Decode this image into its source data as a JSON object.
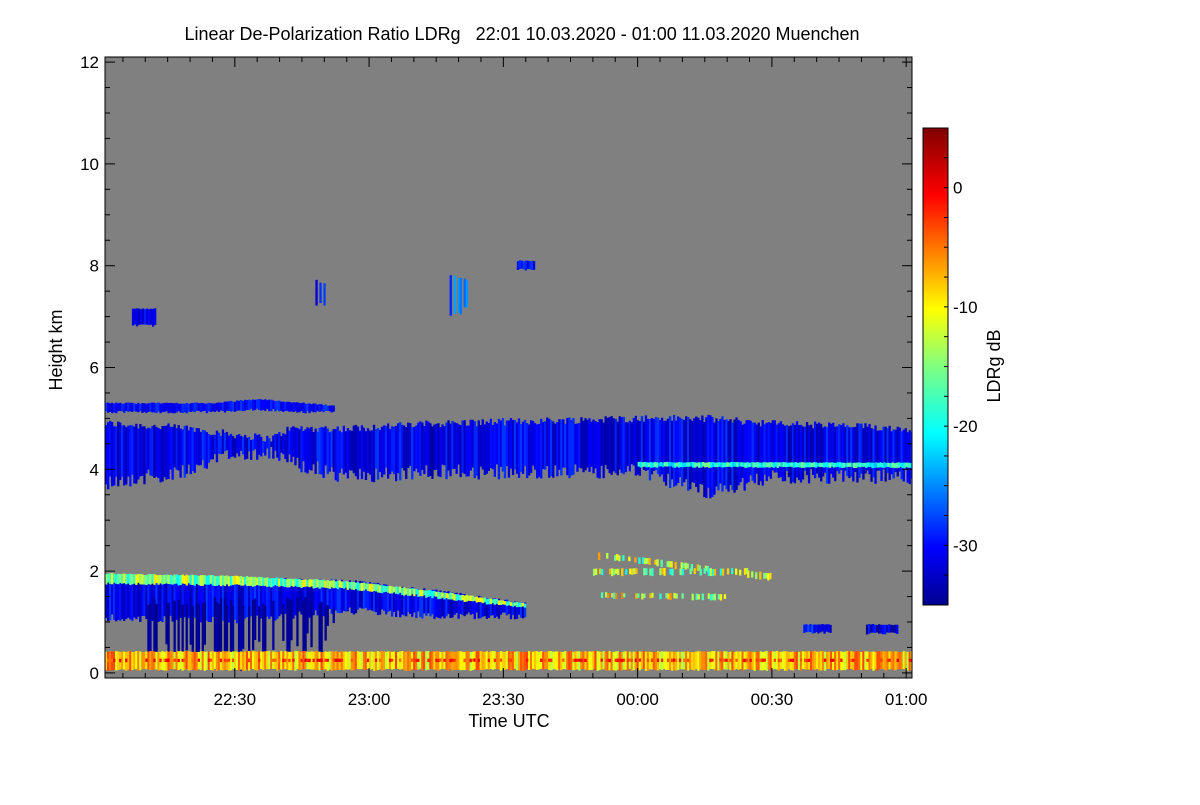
{
  "chart_data": {
    "type": "heatmap",
    "title": "Linear De-Polarization Ratio LDRg   22:01 10.03.2020 - 01:00 11.03.2020 Muenchen",
    "xlabel": "Time UTC",
    "ylabel": "Height km",
    "colorbar_label": "LDRg dB",
    "time_origin": "22:00",
    "xlim_minutes": [
      1,
      181.3
    ],
    "ylim": [
      -0.1,
      12.1
    ],
    "x_ticks": [
      {
        "minutes": 30,
        "label": "22:30"
      },
      {
        "minutes": 60,
        "label": "23:00"
      },
      {
        "minutes": 90,
        "label": "23:30"
      },
      {
        "minutes": 120,
        "label": "00:00"
      },
      {
        "minutes": 150,
        "label": "00:30"
      },
      {
        "minutes": 180,
        "label": "01:00"
      }
    ],
    "y_ticks": [
      {
        "value": 0,
        "label": "0"
      },
      {
        "value": 2,
        "label": "2"
      },
      {
        "value": 4,
        "label": "4"
      },
      {
        "value": 6,
        "label": "6"
      },
      {
        "value": 8,
        "label": "8"
      },
      {
        "value": 10,
        "label": "10"
      },
      {
        "value": 12,
        "label": "12"
      }
    ],
    "colorbar_range": [
      -35,
      5
    ],
    "colorbar_ticks": [
      {
        "value": 0,
        "label": "0"
      },
      {
        "value": -10,
        "label": "-10"
      },
      {
        "value": -20,
        "label": "-20"
      },
      {
        "value": -30,
        "label": "-30"
      }
    ],
    "background_color": "#808080",
    "features": [
      {
        "name": "cirrus-layer",
        "ldr": -31,
        "spread": 3,
        "jitter": 0.3,
        "profile": [
          [
            1,
            3.9,
            4.9
          ],
          [
            20,
            4.1,
            4.8
          ],
          [
            28,
            4.45,
            4.7
          ],
          [
            38,
            4.5,
            4.6
          ],
          [
            42,
            4.3,
            4.8
          ],
          [
            55,
            4.0,
            4.8
          ],
          [
            75,
            4.1,
            4.9
          ],
          [
            120,
            4.1,
            5.0
          ],
          [
            135,
            3.7,
            5.0
          ],
          [
            150,
            4.0,
            4.9
          ],
          [
            181,
            4.0,
            4.8
          ]
        ]
      },
      {
        "name": "cirrus-base-rim",
        "ldr": -19,
        "spread": 4,
        "jitter": 0.03,
        "profile": [
          [
            120,
            4.06,
            4.14
          ],
          [
            181,
            4.05,
            4.13
          ]
        ]
      },
      {
        "name": "upper-thin-layer",
        "ldr": -30,
        "spread": 2,
        "jitter": 0.05,
        "profile": [
          [
            1,
            5.15,
            5.3
          ],
          [
            25,
            5.15,
            5.3
          ],
          [
            35,
            5.2,
            5.38
          ],
          [
            45,
            5.15,
            5.3
          ],
          [
            52,
            5.15,
            5.25
          ]
        ]
      },
      {
        "name": "low-cloud",
        "ldr": -31,
        "spread": 3,
        "jitter": 0.15,
        "profile": [
          [
            1,
            1.15,
            1.9
          ],
          [
            30,
            1.1,
            1.85
          ],
          [
            55,
            1.3,
            1.8
          ],
          [
            75,
            1.2,
            1.6
          ],
          [
            95,
            1.2,
            1.35
          ]
        ]
      },
      {
        "name": "low-cloud-top-rim",
        "ldr": -15,
        "spread": 6,
        "jitter": 0.05,
        "profile": [
          [
            1,
            1.78,
            1.95
          ],
          [
            30,
            1.75,
            1.9
          ],
          [
            55,
            1.68,
            1.8
          ],
          [
            75,
            1.5,
            1.6
          ],
          [
            95,
            1.3,
            1.36
          ]
        ]
      },
      {
        "name": "fallstreaks",
        "ldr": -35,
        "spread": 1,
        "jitter": 0.4,
        "sparse": 0.5,
        "profile": [
          [
            10,
            0.8,
            1.4
          ],
          [
            30,
            0.6,
            1.4
          ],
          [
            50,
            0.9,
            1.4
          ],
          [
            52,
            1.0,
            1.3
          ]
        ]
      },
      {
        "name": "boundary-layer",
        "ldr": -8,
        "spread": 5,
        "jitter": 0.04,
        "profile": [
          [
            1,
            0.08,
            0.42
          ],
          [
            181,
            0.08,
            0.42
          ]
        ]
      },
      {
        "name": "boundary-layer-red-line",
        "ldr": -2,
        "spread": 3,
        "jitter": 0.01,
        "sparse": 0.6,
        "profile": [
          [
            1,
            0.22,
            0.28
          ],
          [
            181,
            0.22,
            0.28
          ]
        ]
      },
      {
        "name": "mid-level-scatter",
        "ldr": -13,
        "spread": 7,
        "jitter": 0.05,
        "sparse": 0.55,
        "profile": [
          [
            108,
            2.3,
            2.4
          ],
          [
            150,
            1.85,
            1.95
          ]
        ]
      },
      {
        "name": "mid-level-scatter-2",
        "ldr": -14,
        "spread": 7,
        "jitter": 0.05,
        "sparse": 0.5,
        "profile": [
          [
            110,
            1.95,
            2.05
          ],
          [
            145,
            1.95,
            2.05
          ]
        ]
      },
      {
        "name": "mid-level-scatter-3",
        "ldr": -12,
        "spread": 7,
        "jitter": 0.04,
        "sparse": 0.5,
        "profile": [
          [
            110,
            1.5,
            1.58
          ],
          [
            140,
            1.45,
            1.55
          ]
        ]
      },
      {
        "name": "blob-1",
        "ldr": -31,
        "spread": 2,
        "jitter": 0.05,
        "profile": [
          [
            7,
            6.85,
            7.15
          ],
          [
            12,
            6.85,
            7.15
          ]
        ]
      },
      {
        "name": "blob-2",
        "ldr": -30,
        "spread": 3,
        "jitter": 0.1,
        "sparse": 0.4,
        "profile": [
          [
            48,
            7.3,
            7.7
          ],
          [
            51,
            7.3,
            7.6
          ]
        ]
      },
      {
        "name": "blob-3",
        "ldr": -28,
        "spread": 4,
        "jitter": 0.15,
        "sparse": 0.4,
        "profile": [
          [
            78,
            7.15,
            7.8
          ],
          [
            82,
            7.2,
            7.7
          ]
        ]
      },
      {
        "name": "blob-4",
        "ldr": -30,
        "spread": 2,
        "jitter": 0.05,
        "profile": [
          [
            93,
            7.95,
            8.1
          ],
          [
            97,
            7.95,
            8.1
          ]
        ]
      },
      {
        "name": "blob-5",
        "ldr": -30,
        "spread": 3,
        "jitter": 0.05,
        "profile": [
          [
            157,
            0.82,
            0.95
          ],
          [
            163,
            0.82,
            0.95
          ]
        ]
      },
      {
        "name": "blob-6",
        "ldr": -32,
        "spread": 3,
        "jitter": 0.05,
        "profile": [
          [
            171,
            0.8,
            0.95
          ],
          [
            178,
            0.8,
            0.95
          ]
        ]
      }
    ]
  }
}
